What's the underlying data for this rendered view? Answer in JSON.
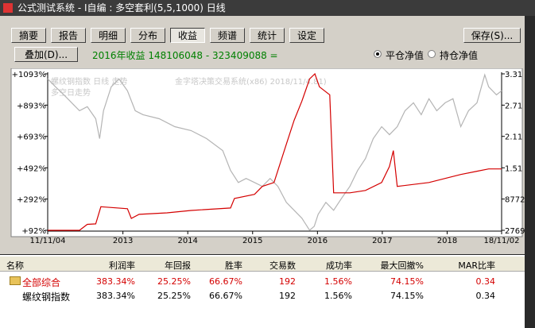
{
  "window": {
    "title": "公式测试系统 - I自编 : 多空套利(5,5,1000) 日线"
  },
  "tabs": {
    "items": [
      "摘要",
      "报告",
      "明细",
      "分布",
      "收益",
      "频谱",
      "统计",
      "设定"
    ],
    "active": "收益"
  },
  "save_button": "保存(S)...",
  "overlay_button": "叠加(D)...",
  "summary": "2016年收益 148106048 - 323409088 =",
  "radios": [
    {
      "label": "平仓净值",
      "checked": true
    },
    {
      "label": "持仓净值",
      "checked": false
    }
  ],
  "chart_data": {
    "type": "line",
    "annotations": [
      "螺纹钢指数 日线 走势",
      "金字塔决策交易系统(x86) 2018/11/4.81)",
      "多空日走势"
    ],
    "xlim": [
      2011.84,
      2018.84
    ],
    "xticks": [
      {
        "value": 2011.84,
        "label": "11/11/04"
      },
      2013,
      2014,
      2015,
      2016,
      2017,
      2018,
      {
        "value": 2018.84,
        "label": "18/11/02"
      }
    ],
    "ylim": [
      92,
      1093
    ],
    "yticks": [
      {
        "value": 1093,
        "label": "+1093%"
      },
      {
        "value": 893,
        "label": "+893%"
      },
      {
        "value": 693,
        "label": "+693%"
      },
      {
        "value": 492,
        "label": "+492%"
      },
      {
        "value": 292,
        "label": "+292%"
      },
      {
        "value": 92,
        "label": "+92%"
      }
    ],
    "y2_labels": [
      "3.31",
      "2.71",
      "2.11",
      "1.51",
      "8772",
      "2769"
    ],
    "series": [
      {
        "name": "螺纹钢指数",
        "color": "#b4b4b4",
        "x": [
          2011.84,
          2011.96,
          2012.09,
          2012.21,
          2012.33,
          2012.45,
          2012.58,
          2012.64,
          2012.7,
          2012.82,
          2012.94,
          2013.07,
          2013.19,
          2013.31,
          2013.56,
          2013.8,
          2014.05,
          2014.29,
          2014.54,
          2014.66,
          2014.78,
          2014.9,
          2015.03,
          2015.15,
          2015.27,
          2015.39,
          2015.52,
          2015.64,
          2015.76,
          2015.88,
          2015.95,
          2016.01,
          2016.13,
          2016.25,
          2016.37,
          2016.5,
          2016.62,
          2016.74,
          2016.86,
          2016.99,
          2017.11,
          2017.23,
          2017.35,
          2017.48,
          2017.6,
          2017.72,
          2017.84,
          2017.97,
          2018.09,
          2018.21,
          2018.33,
          2018.46,
          2018.58,
          2018.64,
          2018.76,
          2018.84
        ],
        "values": [
          1061,
          1010,
          959,
          908,
          857,
          883,
          806,
          679,
          857,
          1010,
          1061,
          985,
          857,
          832,
          806,
          755,
          730,
          679,
          602,
          475,
          398,
          424,
          398,
          373,
          424,
          373,
          271,
          220,
          169,
          92,
          118,
          194,
          271,
          220,
          296,
          373,
          475,
          551,
          679,
          755,
          704,
          755,
          857,
          908,
          832,
          934,
          857,
          908,
          934,
          755,
          857,
          908,
          1087,
          1010,
          959,
          985
        ]
      },
      {
        "name": "全部综合",
        "color": "#d40000",
        "x": [
          2011.84,
          2012.33,
          2012.45,
          2012.58,
          2012.66,
          2013.07,
          2013.13,
          2013.25,
          2013.68,
          2014.05,
          2014.66,
          2014.72,
          2015.03,
          2015.15,
          2015.33,
          2015.39,
          2015.52,
          2015.64,
          2015.76,
          2015.88,
          2015.96,
          2016.03,
          2016.19,
          2016.25,
          2016.5,
          2016.74,
          2016.99,
          2017.11,
          2017.17,
          2017.23,
          2017.72,
          2018.21,
          2018.46,
          2018.64,
          2018.84
        ],
        "values": [
          92,
          92,
          130,
          133,
          243,
          230,
          168,
          194,
          204,
          219,
          235,
          296,
          322,
          373,
          398,
          475,
          643,
          796,
          919,
          1061,
          1093,
          1010,
          959,
          332,
          332,
          347,
          398,
          500,
          602,
          373,
          398,
          449,
          470,
          485,
          485
        ]
      }
    ]
  },
  "table": {
    "headers": [
      "名称",
      "利润率",
      "年回报",
      "胜率",
      "交易数",
      "成功率",
      "最大回撤%",
      "MAR比率"
    ],
    "rows": [
      [
        "全部综合",
        "383.34%",
        "25.25%",
        "66.67%",
        "192",
        "1.56%",
        "74.15%",
        "0.34"
      ],
      [
        "螺纹钢指数",
        "383.34%",
        "25.25%",
        "66.67%",
        "192",
        "1.56%",
        "74.15%",
        "0.34"
      ]
    ]
  }
}
